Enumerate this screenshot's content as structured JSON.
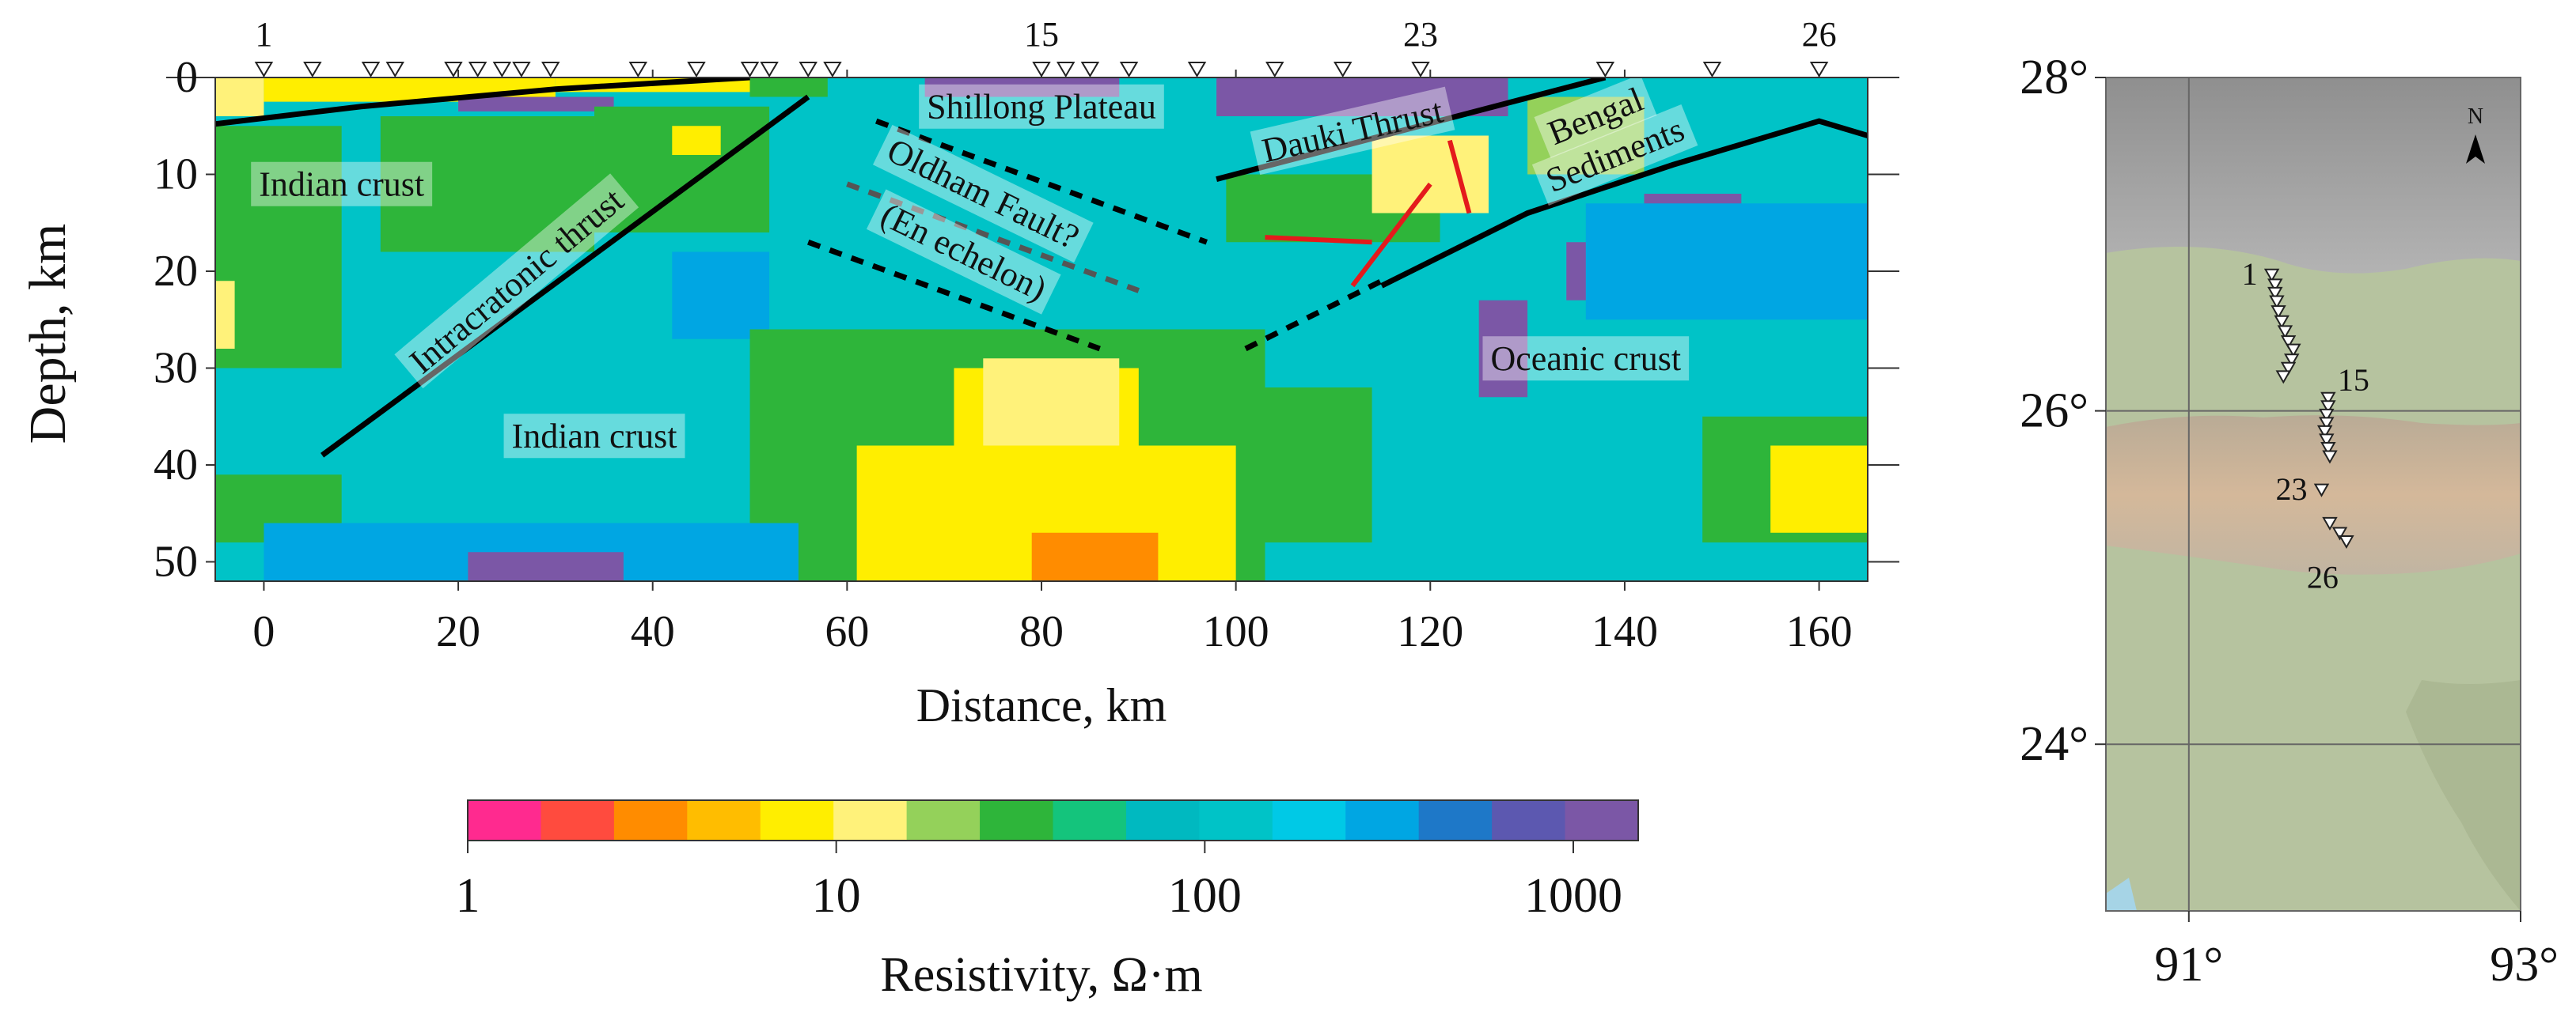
{
  "chart_data": [
    {
      "type": "heatmap",
      "title": "",
      "xlabel": "Distance, km",
      "ylabel": "Depth, km",
      "xlim": [
        -5,
        165
      ],
      "ylim": [
        52,
        0
      ],
      "x_ticks": [
        "0",
        "20",
        "40",
        "60",
        "80",
        "100",
        "120",
        "140",
        "160"
      ],
      "y_ticks": [
        "0",
        "10",
        "20",
        "30",
        "40",
        "50"
      ],
      "x_tick_values": [
        0,
        20,
        40,
        60,
        80,
        100,
        120,
        140,
        160
      ],
      "y_tick_values": [
        0,
        10,
        20,
        30,
        40,
        50
      ],
      "background_color": "#00c3c7",
      "cells": [
        {
          "x0": -5,
          "x1": 0,
          "y0": 0,
          "y1": 4,
          "fill": "#fff27a"
        },
        {
          "x0": 0,
          "x1": 30,
          "y0": 0,
          "y1": 2.5,
          "fill": "#ffee00"
        },
        {
          "x0": 30,
          "x1": 50,
          "y0": 0,
          "y1": 1.5,
          "fill": "#ffee00"
        },
        {
          "x0": 20,
          "x1": 36,
          "y0": 2,
          "y1": 3.5,
          "fill": "#7b57a6"
        },
        {
          "x0": 50,
          "x1": 58,
          "y0": 0,
          "y1": 2,
          "fill": "#2eb53a"
        },
        {
          "x0": 68,
          "x1": 88,
          "y0": 0,
          "y1": 2,
          "fill": "#7b57a6"
        },
        {
          "x0": 98,
          "x1": 128,
          "y0": 0,
          "y1": 4,
          "fill": "#7b57a6"
        },
        {
          "x0": -5,
          "x1": 8,
          "y0": 5,
          "y1": 30,
          "fill": "#2eb53a"
        },
        {
          "x0": 12,
          "x1": 34,
          "y0": 4,
          "y1": 18,
          "fill": "#2eb53a"
        },
        {
          "x0": 34,
          "x1": 52,
          "y0": 3,
          "y1": 16,
          "fill": "#2eb53a"
        },
        {
          "x0": 42,
          "x1": 47,
          "y0": 5,
          "y1": 8,
          "fill": "#ffee00"
        },
        {
          "x0": -5,
          "x1": -3,
          "y0": 21,
          "y1": 28,
          "fill": "#fff27a"
        },
        {
          "x0": 42,
          "x1": 52,
          "y0": 18,
          "y1": 27,
          "fill": "#00a6e3"
        },
        {
          "x0": 99,
          "x1": 121,
          "y0": 10,
          "y1": 17,
          "fill": "#2eb53a"
        },
        {
          "x0": 114,
          "x1": 126,
          "y0": 6,
          "y1": 14,
          "fill": "#fff27a"
        },
        {
          "x0": 130,
          "x1": 142,
          "y0": 2,
          "y1": 10,
          "fill": "#94d15a"
        },
        {
          "x0": 134,
          "x1": 150,
          "y0": 17,
          "y1": 23,
          "fill": "#7b57a6"
        },
        {
          "x0": 142,
          "x1": 152,
          "y0": 12,
          "y1": 17,
          "fill": "#7b57a6"
        },
        {
          "x0": 125,
          "x1": 130,
          "y0": 23,
          "y1": 33,
          "fill": "#7b57a6"
        },
        {
          "x0": 136,
          "x1": 165,
          "y0": 13,
          "y1": 25,
          "fill": "#00a6e3"
        },
        {
          "x0": 103,
          "x1": 114,
          "y0": 32,
          "y1": 48,
          "fill": "#2eb53a"
        },
        {
          "x0": 148,
          "x1": 165,
          "y0": 35,
          "y1": 48,
          "fill": "#2eb53a"
        },
        {
          "x0": 155,
          "x1": 165,
          "y0": 38,
          "y1": 47,
          "fill": "#ffee00"
        },
        {
          "x0": 50,
          "x1": 103,
          "y0": 26,
          "y1": 52,
          "fill": "#2eb53a"
        },
        {
          "x0": 61,
          "x1": 100,
          "y0": 38,
          "y1": 52,
          "fill": "#ffee00"
        },
        {
          "x0": 71,
          "x1": 90,
          "y0": 30,
          "y1": 46,
          "fill": "#ffee00"
        },
        {
          "x0": 74,
          "x1": 88,
          "y0": 29,
          "y1": 38,
          "fill": "#fff27a"
        },
        {
          "x0": 79,
          "x1": 92,
          "y0": 47,
          "y1": 52,
          "fill": "#ff8c00"
        },
        {
          "x0": -5,
          "x1": 8,
          "y0": 41,
          "y1": 48,
          "fill": "#2eb53a"
        },
        {
          "x0": 0,
          "x1": 55,
          "y0": 46,
          "y1": 52,
          "fill": "#00a6e3"
        },
        {
          "x0": 21,
          "x1": 37,
          "y0": 49,
          "y1": 52,
          "fill": "#7b57a6"
        }
      ],
      "lines": [
        {
          "style": "solid",
          "color": "#000000",
          "points": [
            [
              -5,
              4.8
            ],
            [
              10,
              3
            ],
            [
              30,
              1.2
            ],
            [
              50,
              0
            ]
          ]
        },
        {
          "style": "solid",
          "color": "#000000",
          "points": [
            [
              6,
              39
            ],
            [
              56,
              2
            ]
          ]
        },
        {
          "style": "solid",
          "color": "#000000",
          "points": [
            [
              98,
              10.5
            ],
            [
              138,
              0
            ]
          ]
        },
        {
          "style": "solid",
          "color": "#000000",
          "points": [
            [
              115,
              21.5
            ],
            [
              130,
              14
            ],
            [
              145,
              9
            ],
            [
              160,
              4.5
            ],
            [
              165,
              6
            ]
          ]
        },
        {
          "style": "dashed",
          "color": "#000000",
          "points": [
            [
              63,
              4.5
            ],
            [
              97,
              17
            ]
          ]
        },
        {
          "style": "dashed",
          "color": "#555555",
          "points": [
            [
              60,
              11
            ],
            [
              90,
              22
            ]
          ]
        },
        {
          "style": "dashed",
          "color": "#000000",
          "points": [
            [
              56,
              17
            ],
            [
              86,
              28
            ]
          ]
        },
        {
          "style": "dashed",
          "color": "#000000",
          "points": [
            [
              101,
              28
            ],
            [
              115,
              21
            ]
          ]
        },
        {
          "style": "solid",
          "color": "#e41a1c",
          "points": [
            [
              103,
              16.5
            ],
            [
              114,
              17
            ]
          ]
        },
        {
          "style": "solid",
          "color": "#e41a1c",
          "points": [
            [
              112,
              21.5
            ],
            [
              120,
              11
            ]
          ]
        },
        {
          "style": "solid",
          "color": "#e41a1c",
          "points": [
            [
              122,
              6.5
            ],
            [
              124,
              14
            ]
          ]
        }
      ],
      "stations": [
        0,
        5,
        11,
        13.5,
        19.5,
        22,
        24.5,
        26.5,
        29.5,
        38.5,
        44.5,
        50,
        52,
        56,
        58.5,
        80,
        82.5,
        85,
        89,
        96,
        104,
        111,
        119,
        138,
        149,
        160
      ],
      "station_labels": [
        {
          "index": 0,
          "text": "1"
        },
        {
          "index": 15,
          "text": "15"
        },
        {
          "index": 22,
          "text": "23"
        },
        {
          "index": 25,
          "text": "26"
        }
      ],
      "annotations": [
        {
          "text": "Indian crust",
          "x": 8,
          "y": 11,
          "rotate": 0
        },
        {
          "text": "Intracratonic thrust",
          "x": 26,
          "y": 21,
          "rotate": -40
        },
        {
          "text": "Indian crust",
          "x": 34,
          "y": 37,
          "rotate": 0
        },
        {
          "text": "Shillong Plateau",
          "x": 80,
          "y": 3,
          "rotate": 0
        },
        {
          "text": "Oldham Fault?",
          "x": 74,
          "y": 12,
          "rotate": 26
        },
        {
          "text": "(En echelon)",
          "x": 72,
          "y": 18,
          "rotate": 26
        },
        {
          "text": "Dauki Thrust",
          "x": 112,
          "y": 5.5,
          "rotate": -13
        },
        {
          "text": "Bengal",
          "x": 137,
          "y": 4,
          "rotate": -22
        },
        {
          "text": "Sediments",
          "x": 139,
          "y": 8,
          "rotate": -22
        },
        {
          "text": "Oceanic crust",
          "x": 136,
          "y": 29,
          "rotate": 0
        }
      ]
    },
    {
      "type": "colorbar",
      "label": "Resistivity, Ω·m",
      "scale": "log",
      "range": [
        1,
        1500
      ],
      "tick_labels": [
        "1",
        "10",
        "100",
        "1000"
      ],
      "tick_values": [
        1,
        10,
        100,
        1000
      ],
      "colors": [
        "#ff2a8f",
        "#ff4b3e",
        "#ff8c00",
        "#ffbd00",
        "#ffee00",
        "#fff27a",
        "#94d15a",
        "#2eb53a",
        "#14c47c",
        "#00b9c0",
        "#00c3c7",
        "#00c9e6",
        "#00a6e3",
        "#1e78c8",
        "#5c58b0",
        "#7b57a6"
      ]
    },
    {
      "type": "map",
      "x_ticks": [
        "91°",
        "93°"
      ],
      "y_ticks": [
        "28°",
        "26°",
        "24°"
      ],
      "x_tick_values": [
        91,
        93
      ],
      "y_tick_values": [
        28,
        26,
        24
      ],
      "lon_range": [
        90.5,
        93
      ],
      "lat_range": [
        23,
        28
      ],
      "north_arrow": "N",
      "stations_lonlat": [
        [
          91.5,
          26.82
        ],
        [
          91.52,
          26.76
        ],
        [
          91.52,
          26.71
        ],
        [
          91.53,
          26.66
        ],
        [
          91.54,
          26.6
        ],
        [
          91.56,
          26.54
        ],
        [
          91.58,
          26.48
        ],
        [
          91.6,
          26.42
        ],
        [
          91.63,
          26.37
        ],
        [
          91.62,
          26.31
        ],
        [
          91.6,
          26.26
        ],
        [
          91.57,
          26.21
        ],
        [
          91.84,
          26.08
        ],
        [
          91.84,
          26.03
        ],
        [
          91.83,
          25.98
        ],
        [
          91.83,
          25.93
        ],
        [
          91.82,
          25.88
        ],
        [
          91.83,
          25.83
        ],
        [
          91.84,
          25.78
        ],
        [
          91.85,
          25.73
        ],
        [
          91.8,
          25.53
        ],
        [
          91.85,
          25.33
        ],
        [
          91.91,
          25.27
        ],
        [
          91.95,
          25.22
        ]
      ],
      "station_labels": [
        {
          "index": 0,
          "text": "1"
        },
        {
          "index": 12,
          "text": "15"
        },
        {
          "index": 20,
          "text": "23"
        },
        {
          "index": 23,
          "text": "26"
        }
      ]
    }
  ]
}
